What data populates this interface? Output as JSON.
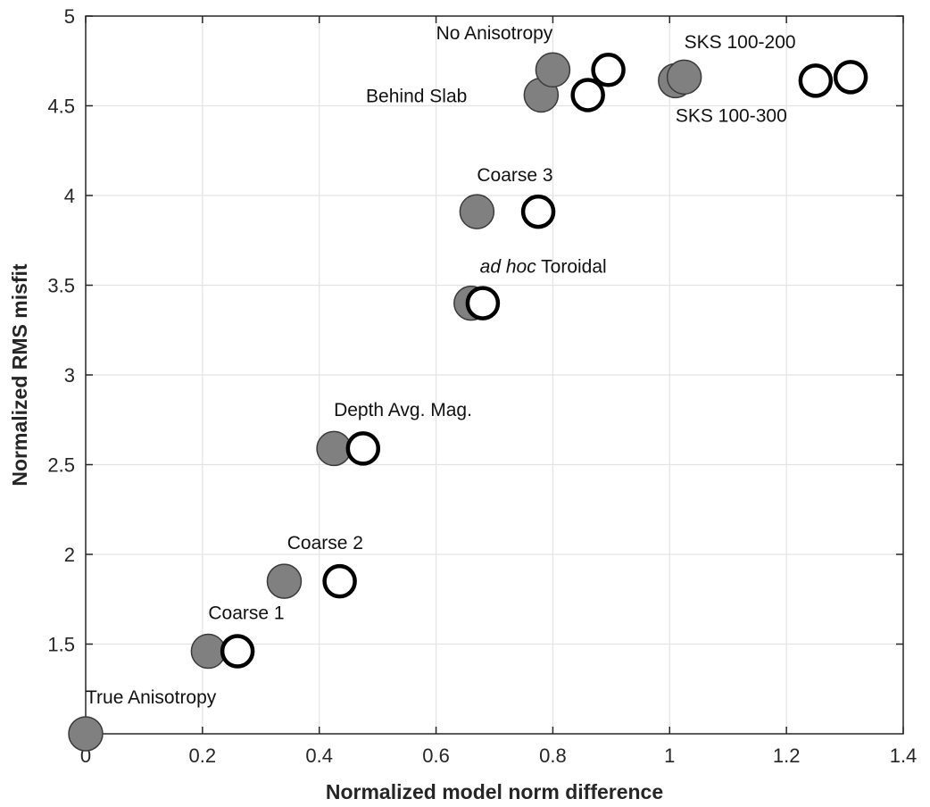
{
  "chart_data": {
    "type": "scatter",
    "title": "",
    "xlabel": "Normalized model norm difference",
    "ylabel": "Normalized RMS misfit",
    "xlim": [
      0,
      1.4
    ],
    "ylim": [
      1,
      5
    ],
    "xticks": [
      0,
      0.2,
      0.4,
      0.6,
      0.8,
      1,
      1.2,
      1.4
    ],
    "xtick_labels": [
      "0",
      "0.2",
      "0.4",
      "0.6",
      "0.8",
      "1",
      "1.2",
      "1.4"
    ],
    "yticks": [
      1.5,
      2,
      2.5,
      3,
      3.5,
      4,
      4.5,
      5
    ],
    "ytick_labels": [
      "1.5",
      "2",
      "2.5",
      "3",
      "3.5",
      "4",
      "4.5",
      "5"
    ],
    "grid": true,
    "series": [
      {
        "marker": "filled",
        "color": "#808080",
        "points": [
          {
            "x": 0.0,
            "y": 1.0
          },
          {
            "x": 0.21,
            "y": 1.46
          },
          {
            "x": 0.34,
            "y": 1.85
          },
          {
            "x": 0.425,
            "y": 2.59
          },
          {
            "x": 0.66,
            "y": 3.4
          },
          {
            "x": 0.67,
            "y": 3.91
          },
          {
            "x": 0.78,
            "y": 4.56
          },
          {
            "x": 0.8,
            "y": 4.7
          },
          {
            "x": 1.01,
            "y": 4.64
          },
          {
            "x": 1.025,
            "y": 4.66
          }
        ]
      },
      {
        "marker": "open",
        "color": "#000000",
        "points": [
          {
            "x": 0.0,
            "y": 1.0
          },
          {
            "x": 0.26,
            "y": 1.46
          },
          {
            "x": 0.435,
            "y": 1.85
          },
          {
            "x": 0.475,
            "y": 2.59
          },
          {
            "x": 0.68,
            "y": 3.4
          },
          {
            "x": 0.775,
            "y": 3.91
          },
          {
            "x": 0.86,
            "y": 4.56
          },
          {
            "x": 0.895,
            "y": 4.7
          },
          {
            "x": 1.25,
            "y": 4.64
          },
          {
            "x": 1.31,
            "y": 4.66
          }
        ]
      }
    ],
    "annotations": [
      {
        "text": "True Anisotropy",
        "x": 0.0,
        "y": 1.17,
        "anchor": "start"
      },
      {
        "text": "Coarse 1",
        "x": 0.21,
        "y": 1.64,
        "anchor": "start"
      },
      {
        "text": "Coarse 2",
        "x": 0.345,
        "y": 2.03,
        "anchor": "start"
      },
      {
        "text": "Depth Avg. Mag.",
        "x": 0.425,
        "y": 2.77,
        "anchor": "start"
      },
      {
        "text_italic": "ad hoc",
        "text": " Toroidal",
        "x": 0.675,
        "y": 3.57,
        "anchor": "start"
      },
      {
        "text": "Coarse 3",
        "x": 0.67,
        "y": 4.08,
        "anchor": "start"
      },
      {
        "text": "Behind Slab",
        "x": 0.48,
        "y": 4.52,
        "anchor": "start"
      },
      {
        "text": "No Anisotropy",
        "x": 0.6,
        "y": 4.87,
        "anchor": "start"
      },
      {
        "text": "SKS 100-200",
        "x": 1.025,
        "y": 4.82,
        "anchor": "start"
      },
      {
        "text": "SKS 100-300",
        "x": 1.01,
        "y": 4.41,
        "anchor": "start"
      }
    ]
  }
}
